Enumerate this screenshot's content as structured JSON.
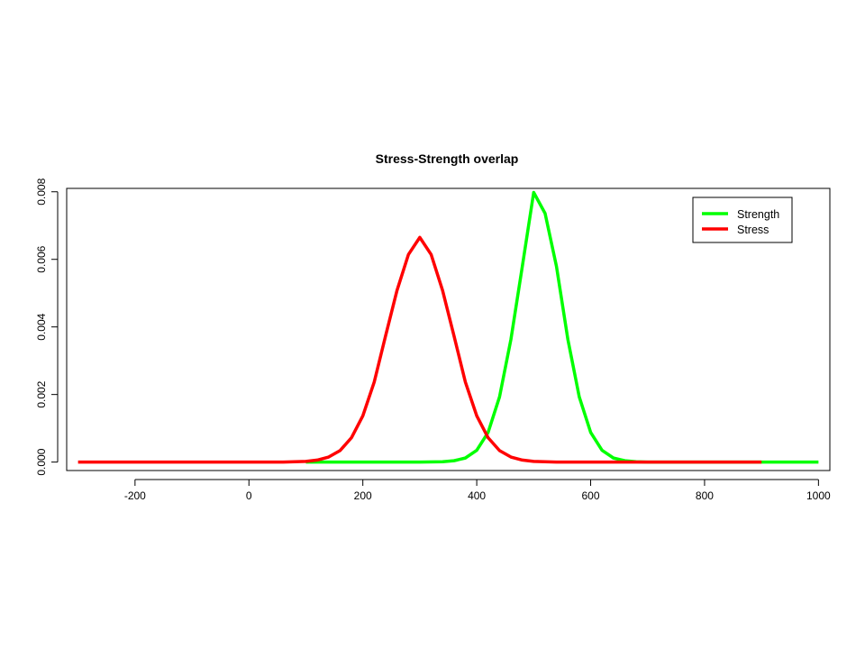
{
  "chart_data": {
    "type": "line",
    "title": "Stress-Strength overlap",
    "xlabel": "",
    "ylabel": "",
    "xlim": [
      -320,
      1020
    ],
    "ylim": [
      -0.00025,
      0.0081
    ],
    "x_ticks": [
      -200,
      0,
      200,
      400,
      600,
      800,
      1000
    ],
    "x_tick_labels": [
      "-200",
      "0",
      "200",
      "400",
      "600",
      "800",
      "1000"
    ],
    "y_ticks": [
      0,
      0.002,
      0.004,
      0.006,
      0.008
    ],
    "y_tick_labels": [
      "0.000",
      "0.002",
      "0.004",
      "0.006",
      "0.008"
    ],
    "grid": false,
    "legend_position": "top-right",
    "series": [
      {
        "name": "Strength",
        "color": "#00ff00",
        "x": [
          100,
          300,
          340,
          360,
          380,
          400,
          420,
          440,
          460,
          480,
          500,
          520,
          540,
          560,
          580,
          600,
          620,
          640,
          660,
          680,
          700,
          1000
        ],
        "values": [
          0,
          0,
          1e-05,
          4e-05,
          0.00012,
          0.00035,
          0.00088,
          0.00193,
          0.00363,
          0.00579,
          0.00798,
          0.00736,
          0.00579,
          0.00363,
          0.00193,
          0.00088,
          0.00035,
          0.00012,
          4e-05,
          1e-05,
          0,
          0
        ]
      },
      {
        "name": "Stress",
        "color": "#ff0000",
        "x": [
          -300,
          60,
          100,
          120,
          140,
          160,
          180,
          200,
          220,
          240,
          260,
          280,
          300,
          320,
          340,
          360,
          380,
          400,
          420,
          440,
          460,
          480,
          500,
          540,
          580,
          900
        ],
        "values": [
          0,
          0,
          2e-05,
          6e-05,
          0.00015,
          0.00034,
          0.00072,
          0.00137,
          0.00237,
          0.00374,
          0.00508,
          0.00614,
          0.00665,
          0.00614,
          0.00508,
          0.00374,
          0.00237,
          0.00137,
          0.00072,
          0.00034,
          0.00015,
          6e-05,
          2e-05,
          1e-06,
          0,
          0
        ]
      }
    ]
  }
}
